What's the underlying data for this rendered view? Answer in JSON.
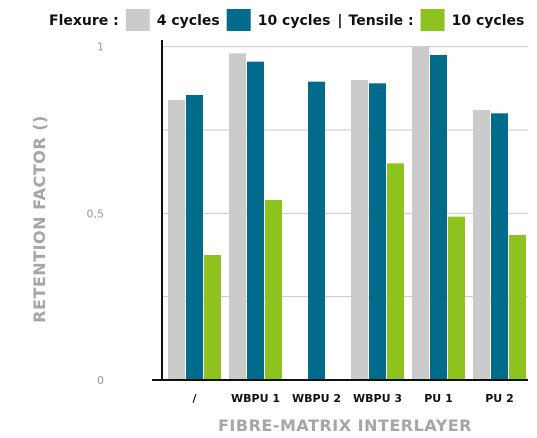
{
  "chart_data": {
    "type": "bar",
    "xlabel": "FIBRE-MATRIX INTERLAYER",
    "ylabel": "RETENTION FACTOR ()",
    "ylim": [
      0,
      1.02
    ],
    "yticks": [
      0,
      0.25,
      0.5,
      0.75,
      1
    ],
    "ytick_labels": [
      "0",
      "",
      "0,5",
      "",
      "1"
    ],
    "grid": true,
    "legend_position": "top",
    "legend_groups": [
      {
        "label": "Flexure :",
        "series_indices": [
          0,
          1
        ]
      },
      {
        "label": "Tensile :",
        "series_indices": [
          2
        ]
      }
    ],
    "legend_separator": "|",
    "categories": [
      "/",
      "WBPU 1",
      "WBPU 2",
      "WBPU 3",
      "PU 1",
      "PU 2"
    ],
    "series": [
      {
        "name": "4 cycles",
        "color": "#cbcbcb",
        "values": [
          0.84,
          0.98,
          null,
          0.9,
          1.0,
          0.81
        ]
      },
      {
        "name": "10 cycles",
        "color": "#006b8a",
        "values": [
          0.855,
          0.955,
          0.895,
          0.89,
          0.975,
          0.8
        ]
      },
      {
        "name": "10 cycles",
        "color": "#8dc21f",
        "values": [
          0.375,
          0.54,
          null,
          0.65,
          0.49,
          0.435
        ]
      }
    ]
  }
}
